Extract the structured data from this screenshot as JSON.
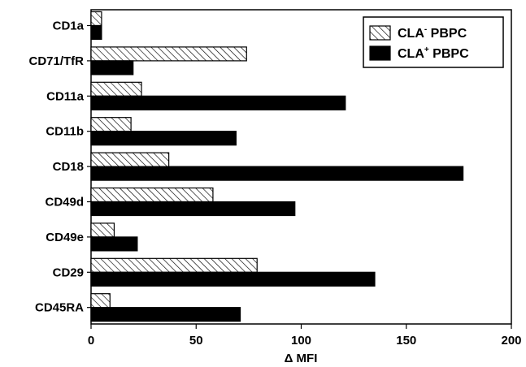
{
  "chart_data": {
    "type": "bar",
    "orientation": "horizontal",
    "categories": [
      "CD1a",
      "CD71/TfR",
      "CD11a",
      "CD11b",
      "CD18",
      "CD49d",
      "CD49e",
      "CD29",
      "CD45RA"
    ],
    "series": [
      {
        "name_base": "CLA",
        "name_sup": "-",
        "name_rest": " PBPC",
        "pattern": "hatched",
        "values": [
          5,
          74,
          24,
          19,
          37,
          58,
          11,
          79,
          9
        ]
      },
      {
        "name_base": "CLA",
        "name_sup": "+",
        "name_rest": " PBPC",
        "pattern": "solid",
        "values": [
          5,
          20,
          121,
          69,
          177,
          97,
          22,
          135,
          71
        ]
      }
    ],
    "xlabel": "Δ MFI",
    "xlim": [
      0,
      200
    ],
    "xticks": [
      0,
      50,
      100,
      150,
      200
    ],
    "legend_position": "top-right",
    "grid": false,
    "colors": {
      "solid": "#000000",
      "hatch": "#000000",
      "background": "#ffffff"
    }
  }
}
